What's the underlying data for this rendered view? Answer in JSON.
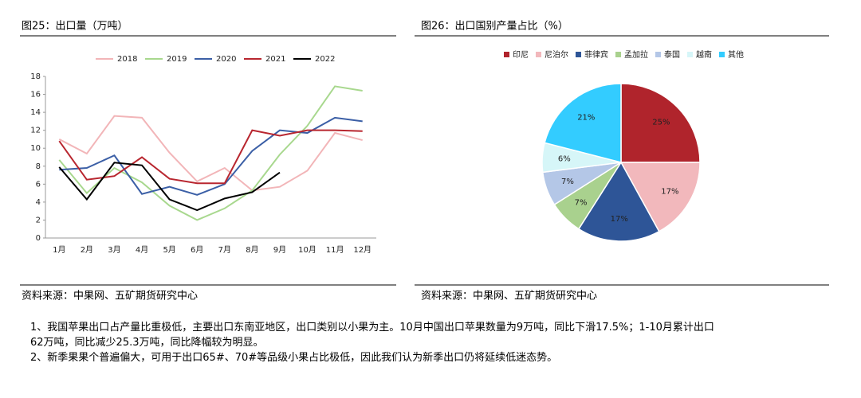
{
  "chart_data": [
    {
      "type": "line",
      "title": "图25：出口量（万吨）",
      "categories": [
        "1月",
        "2月",
        "3月",
        "4月",
        "5月",
        "6月",
        "7月",
        "8月",
        "9月",
        "10月",
        "11月",
        "12月"
      ],
      "series": [
        {
          "name": "2018",
          "color": "#f2b5b8",
          "values": [
            11,
            9.4,
            13.6,
            13.4,
            9.5,
            6.3,
            7.8,
            5.3,
            5.7,
            7.5,
            11.7,
            10.9
          ]
        },
        {
          "name": "2019",
          "color": "#a8d88e",
          "values": [
            8.7,
            5,
            7.8,
            6.2,
            3.6,
            2,
            3.3,
            5.3,
            9.3,
            12.5,
            16.9,
            16.4
          ]
        },
        {
          "name": "2020",
          "color": "#3b5fa6",
          "values": [
            7.6,
            7.8,
            9.2,
            4.9,
            5.7,
            4.8,
            6,
            9.7,
            12,
            11.7,
            13.4,
            13
          ]
        },
        {
          "name": "2021",
          "color": "#b8262f",
          "values": [
            10.8,
            6.5,
            6.9,
            9,
            6.6,
            6.1,
            6.1,
            12,
            11.4,
            12,
            12,
            11.9
          ]
        },
        {
          "name": "2022",
          "color": "#000000",
          "values": [
            7.9,
            4.3,
            8.4,
            8.1,
            4.3,
            3.1,
            4.4,
            5.1,
            7.3,
            null,
            null,
            null
          ]
        }
      ],
      "ylim": [
        0,
        18
      ],
      "yticks": [
        0,
        2,
        4,
        6,
        8,
        10,
        12,
        14,
        16,
        18
      ],
      "legend": "top",
      "source": "资料来源：中果网、五矿期货研究中心"
    },
    {
      "type": "pie",
      "title": "图26：出口国别产量占比（%）",
      "categories": [
        "印尼",
        "尼泊尔",
        "菲律宾",
        "孟加拉",
        "泰国",
        "越南",
        "其他"
      ],
      "values": [
        25,
        17,
        17,
        7,
        7,
        6,
        21
      ],
      "value_labels": [
        "25%",
        "17%",
        "17%",
        "7%",
        "7%",
        "6%",
        "21%"
      ],
      "colors": [
        "#b0242c",
        "#f2b8bc",
        "#2e5597",
        "#a9d18e",
        "#b4c7e7",
        "#d6f6f8",
        "#33ccff"
      ],
      "legend": "top",
      "source": "资料来源：中果网、五矿期货研究中心"
    }
  ],
  "notes": [
    "1、我国苹果出口占产量比重极低，主要出口东南亚地区，出口类别以小果为主。10月中国出口苹果数量为9万吨，同比下滑17.5%；1-10月累计出口",
    "62万吨，同比减少25.3万吨，同比降幅较为明显。",
    "2、新季果果个普遍偏大，可用于出口65#、70#等品级小果占比极低，因此我们认为新季出口仍将延续低迷态势。"
  ]
}
